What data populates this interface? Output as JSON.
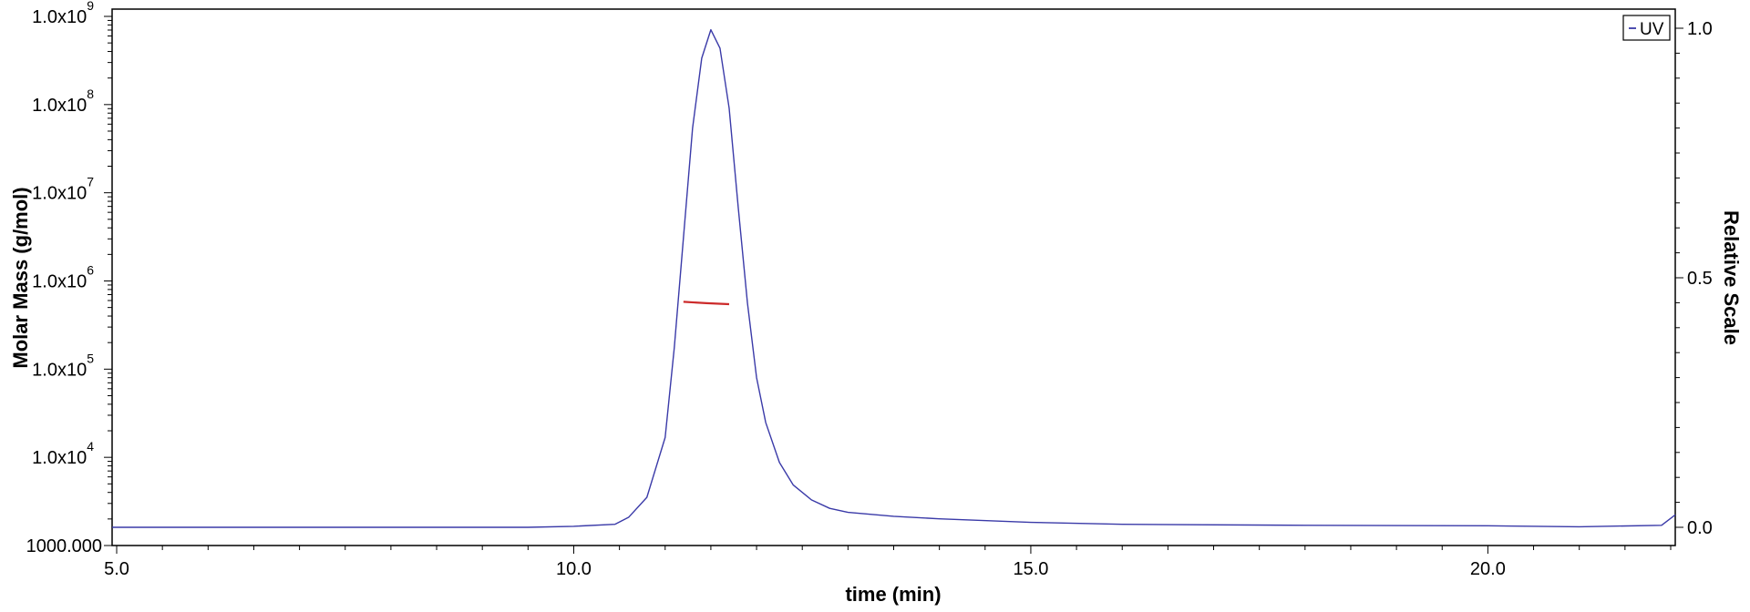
{
  "chart_data": {
    "type": "line",
    "xlabel": "time (min)",
    "ylabel_left": "Molar Mass (g/mol)",
    "ylabel_right": "Relative Scale",
    "xlim": [
      4.95,
      22.05
    ],
    "ylim_left": [
      1000,
      1000000000
    ],
    "left_scale": "log",
    "ylim_right": [
      0.0,
      1.0
    ],
    "x_ticks": [
      {
        "value": 5.0,
        "label": "5.0"
      },
      {
        "value": 10.0,
        "label": "10.0"
      },
      {
        "value": 15.0,
        "label": "15.0"
      },
      {
        "value": 20.0,
        "label": "20.0"
      }
    ],
    "left_ticks": [
      {
        "value": 1000,
        "base": "1000.000",
        "exp": ""
      },
      {
        "value": 10000,
        "base": "1.0x10",
        "exp": "4"
      },
      {
        "value": 100000,
        "base": "1.0x10",
        "exp": "5"
      },
      {
        "value": 1000000,
        "base": "1.0x10",
        "exp": "6"
      },
      {
        "value": 10000000,
        "base": "1.0x10",
        "exp": "7"
      },
      {
        "value": 100000000,
        "base": "1.0x10",
        "exp": "8"
      },
      {
        "value": 1000000000,
        "base": "1.0x10",
        "exp": "9"
      }
    ],
    "right_ticks": [
      {
        "value": 0.0,
        "label": "0.0"
      },
      {
        "value": 0.5,
        "label": "0.5"
      },
      {
        "value": 1.0,
        "label": "1.0"
      }
    ],
    "legend": {
      "position": "top-right",
      "label": "UV"
    },
    "series": [
      {
        "name": "UV",
        "axis": "right",
        "color": "#3a3aa8",
        "points": [
          [
            4.95,
            0.0
          ],
          [
            9.5,
            0.0
          ],
          [
            10.0,
            0.002
          ],
          [
            10.45,
            0.006
          ],
          [
            10.6,
            0.02
          ],
          [
            10.8,
            0.06
          ],
          [
            11.0,
            0.18
          ],
          [
            11.1,
            0.36
          ],
          [
            11.2,
            0.58
          ],
          [
            11.3,
            0.8
          ],
          [
            11.4,
            0.94
          ],
          [
            11.5,
            0.997
          ],
          [
            11.6,
            0.96
          ],
          [
            11.7,
            0.84
          ],
          [
            11.8,
            0.64
          ],
          [
            11.9,
            0.45
          ],
          [
            12.0,
            0.3
          ],
          [
            12.1,
            0.21
          ],
          [
            12.25,
            0.13
          ],
          [
            12.4,
            0.085
          ],
          [
            12.6,
            0.055
          ],
          [
            12.8,
            0.038
          ],
          [
            13.0,
            0.03
          ],
          [
            13.5,
            0.022
          ],
          [
            14.0,
            0.017
          ],
          [
            15.0,
            0.01
          ],
          [
            16.0,
            0.006
          ],
          [
            18.0,
            0.004
          ],
          [
            20.0,
            0.003
          ],
          [
            21.0,
            0.001
          ],
          [
            21.9,
            0.004
          ],
          [
            22.05,
            0.025
          ]
        ]
      },
      {
        "name": "Molar Mass",
        "axis": "left",
        "color": "#cc2a2a",
        "points": [
          [
            11.2,
            580000
          ],
          [
            11.45,
            560000
          ],
          [
            11.7,
            545000
          ]
        ]
      }
    ]
  }
}
